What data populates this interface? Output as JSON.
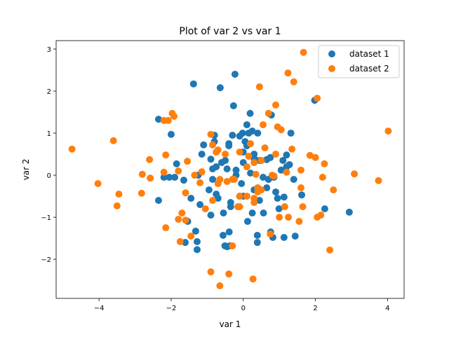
{
  "chart_data": {
    "type": "scatter",
    "title": "Plot of var 2 vs var 1",
    "xlabel": "var 1",
    "ylabel": "var 2",
    "xlim": [
      -5.19,
      4.46
    ],
    "ylim": [
      -2.93,
      3.2
    ],
    "xticks": [
      -4,
      -2,
      0,
      2,
      4
    ],
    "yticks": [
      -2,
      -1,
      0,
      1,
      2,
      3
    ],
    "grid": false,
    "legend": "top-right",
    "series": [
      {
        "name": "dataset 1",
        "color": "#1f77b4",
        "points": [
          [
            -1.38,
            2.17
          ],
          [
            -0.23,
            2.4
          ],
          [
            -0.64,
            2.08
          ],
          [
            -0.27,
            1.65
          ],
          [
            1.98,
            1.78
          ],
          [
            -2.35,
            1.33
          ],
          [
            -2.0,
            0.97
          ],
          [
            0.19,
            1.47
          ],
          [
            0.78,
            1.43
          ],
          [
            1.32,
            1.0
          ],
          [
            -2.35,
            -0.6
          ],
          [
            2.94,
            -0.88
          ],
          [
            2.26,
            -0.8
          ],
          [
            1.44,
            -1.45
          ],
          [
            1.13,
            -1.48
          ],
          [
            0.39,
            -1.43
          ],
          [
            0.39,
            -1.6
          ],
          [
            -0.51,
            -1.68
          ],
          [
            -0.37,
            -1.68
          ],
          [
            -1.28,
            -1.58
          ],
          [
            -1.28,
            -1.77
          ],
          [
            -1.61,
            -1.6
          ],
          [
            -1.32,
            -1.33
          ],
          [
            -1.54,
            -1.1
          ],
          [
            -0.39,
            -1.35
          ],
          [
            -0.56,
            -1.43
          ],
          [
            0.12,
            -1.1
          ],
          [
            0.56,
            -0.9
          ],
          [
            0.76,
            -1.35
          ],
          [
            0.82,
            -1.48
          ],
          [
            1.13,
            -0.52
          ],
          [
            0.99,
            -0.8
          ],
          [
            1.62,
            -0.47
          ],
          [
            1.2,
            0.48
          ],
          [
            1.2,
            0.2
          ],
          [
            1.05,
            0.12
          ],
          [
            1.1,
            0.35
          ],
          [
            -2.2,
            -0.05
          ],
          [
            -1.9,
            -0.05
          ],
          [
            -1.85,
            0.27
          ],
          [
            -1.65,
            -0.12
          ],
          [
            -1.15,
            0.5
          ],
          [
            -1.1,
            0.72
          ],
          [
            -0.9,
            0.38
          ],
          [
            -0.85,
            0.15
          ],
          [
            -0.75,
            0.2
          ],
          [
            -0.85,
            -0.1
          ],
          [
            -0.95,
            -0.35
          ],
          [
            -0.75,
            -0.45
          ],
          [
            -0.7,
            -0.55
          ],
          [
            -1.2,
            -0.7
          ],
          [
            -1.45,
            -0.55
          ],
          [
            -0.9,
            -0.95
          ],
          [
            -0.35,
            -0.65
          ],
          [
            -0.35,
            -0.75
          ],
          [
            -0.55,
            -0.9
          ],
          [
            -0.2,
            0.0
          ],
          [
            -0.1,
            -0.5
          ],
          [
            0.0,
            0.55
          ],
          [
            0.05,
            0.8
          ],
          [
            0.1,
            0.7
          ],
          [
            0.15,
            1.0
          ],
          [
            0.1,
            1.2
          ],
          [
            0.25,
            1.05
          ],
          [
            0.4,
            1.0
          ],
          [
            -0.3,
            0.95
          ],
          [
            -0.1,
            0.93
          ],
          [
            -0.02,
            1.0
          ],
          [
            -0.8,
            0.95
          ],
          [
            -0.8,
            0.8
          ],
          [
            -0.4,
            0.75
          ],
          [
            -0.4,
            0.7
          ],
          [
            0.3,
            0.4
          ],
          [
            0.5,
            0.35
          ],
          [
            0.65,
            0.37
          ],
          [
            0.75,
            0.42
          ],
          [
            0.45,
            0.35
          ],
          [
            0.3,
            0.5
          ],
          [
            -0.6,
            0.3
          ],
          [
            -0.5,
            0.35
          ],
          [
            -0.2,
            0.12
          ],
          [
            0.0,
            0.3
          ],
          [
            0.2,
            0.05
          ],
          [
            0.55,
            -0.05
          ],
          [
            0.7,
            -0.1
          ],
          [
            0.65,
            -0.3
          ],
          [
            0.3,
            -0.35
          ],
          [
            0.85,
            -0.05
          ],
          [
            0.9,
            -0.4
          ],
          [
            0.95,
            -0.55
          ],
          [
            0.25,
            -0.9
          ],
          [
            -0.45,
            -1.7
          ],
          [
            1.4,
            -0.1
          ],
          [
            -0.45,
            0.15
          ],
          [
            1.28,
            0.25
          ],
          [
            -2.05,
            -0.05
          ],
          [
            -1.25,
            0.0
          ],
          [
            -0.05,
            -0.2
          ],
          [
            0.45,
            -0.6
          ],
          [
            0.0,
            -0.5
          ]
        ]
      },
      {
        "name": "dataset 2",
        "color": "#ff7f0e",
        "points": [
          [
            1.67,
            2.92
          ],
          [
            1.24,
            2.43
          ],
          [
            1.4,
            2.22
          ],
          [
            0.45,
            2.1
          ],
          [
            0.9,
            1.67
          ],
          [
            2.05,
            1.83
          ],
          [
            4.02,
            1.05
          ],
          [
            -4.75,
            0.62
          ],
          [
            -3.6,
            0.82
          ],
          [
            -1.97,
            1.47
          ],
          [
            -1.92,
            1.4
          ],
          [
            -2.2,
            1.3
          ],
          [
            -2.08,
            1.3
          ],
          [
            -4.03,
            -0.2
          ],
          [
            -3.45,
            -0.45
          ],
          [
            -3.5,
            -0.73
          ],
          [
            -2.8,
            0.02
          ],
          [
            -2.82,
            -0.43
          ],
          [
            -2.6,
            0.37
          ],
          [
            -2.58,
            -0.07
          ],
          [
            -2.2,
            0.07
          ],
          [
            -2.15,
            -1.25
          ],
          [
            -2.15,
            0.48
          ],
          [
            -1.8,
            -1.05
          ],
          [
            -1.6,
            -1.07
          ],
          [
            -1.7,
            -0.9
          ],
          [
            -1.75,
            -1.58
          ],
          [
            -1.45,
            -1.45
          ],
          [
            -1.6,
            -0.42
          ],
          [
            -1.55,
            0.33
          ],
          [
            -1.8,
            0.1
          ],
          [
            -1.2,
            -0.18
          ],
          [
            -1.15,
            0.08
          ],
          [
            -0.9,
            0.97
          ],
          [
            -0.85,
            0.72
          ],
          [
            -0.7,
            0.6
          ],
          [
            -0.75,
            0.55
          ],
          [
            -0.5,
            0.5
          ],
          [
            -0.65,
            -0.1
          ],
          [
            -0.7,
            -0.2
          ],
          [
            -0.85,
            -0.6
          ],
          [
            -1.05,
            -0.8
          ],
          [
            -0.9,
            -2.3
          ],
          [
            -0.65,
            -2.63
          ],
          [
            -0.4,
            -2.35
          ],
          [
            -0.3,
            -1.68
          ],
          [
            0.27,
            -2.47
          ],
          [
            -0.1,
            -0.5
          ],
          [
            -0.1,
            -0.75
          ],
          [
            -0.45,
            -0.15
          ],
          [
            -0.3,
            -0.1
          ],
          [
            0.1,
            0.2
          ],
          [
            0.15,
            0.45
          ],
          [
            0.2,
            0.75
          ],
          [
            -0.1,
            0.55
          ],
          [
            0.5,
            0.35
          ],
          [
            0.55,
            1.2
          ],
          [
            0.7,
            1.47
          ],
          [
            0.95,
            1.15
          ],
          [
            1.05,
            1.08
          ],
          [
            1.35,
            0.62
          ],
          [
            1.2,
            0.07
          ],
          [
            0.8,
            0.0
          ],
          [
            0.85,
            -0.02
          ],
          [
            0.5,
            -0.35
          ],
          [
            0.4,
            -0.3
          ],
          [
            0.3,
            -0.55
          ],
          [
            0.3,
            -0.65
          ],
          [
            0.1,
            -0.5
          ],
          [
            0.6,
            0.65
          ],
          [
            1.15,
            -0.75
          ],
          [
            1.25,
            -1.0
          ],
          [
            1.0,
            -1.0
          ],
          [
            0.75,
            -1.4
          ],
          [
            1.55,
            -1.1
          ],
          [
            1.65,
            -0.75
          ],
          [
            1.6,
            -0.3
          ],
          [
            1.6,
            0.12
          ],
          [
            1.85,
            0.47
          ],
          [
            2.0,
            0.42
          ],
          [
            2.25,
            0.27
          ],
          [
            2.2,
            -0.05
          ],
          [
            2.05,
            -1.0
          ],
          [
            2.15,
            -0.95
          ],
          [
            2.4,
            -1.78
          ],
          [
            2.5,
            -0.35
          ],
          [
            3.08,
            0.03
          ],
          [
            3.75,
            -0.13
          ],
          [
            -0.15,
            -0.75
          ],
          [
            0.35,
            0.02
          ],
          [
            0.4,
            -0.4
          ],
          [
            0.9,
            0.5
          ],
          [
            -1.35,
            0.0
          ],
          [
            -0.25,
            -0.1
          ],
          [
            0.3,
            0.3
          ]
        ]
      }
    ]
  }
}
